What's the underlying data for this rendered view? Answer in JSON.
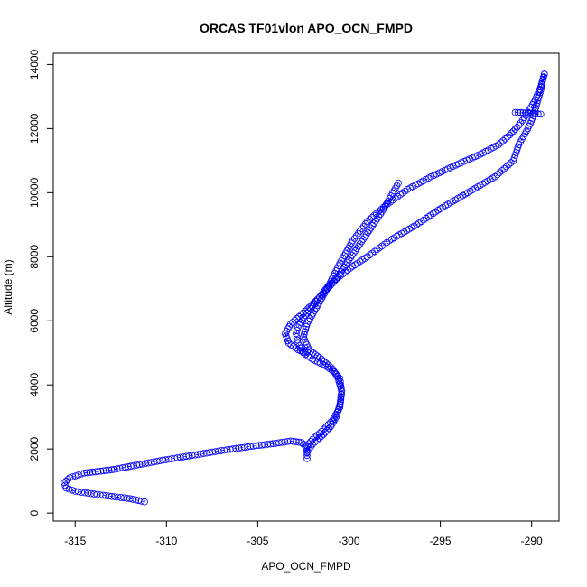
{
  "chart_data": {
    "type": "scatter",
    "title": "ORCAS TF01vlon APO_OCN_FMPD",
    "xlabel": "APO_OCN_FMPD",
    "ylabel": "Altitude (m)",
    "xlim": [
      -316.2,
      -288.5
    ],
    "ylim": [
      -250,
      14350
    ],
    "xticks": [
      -315,
      -310,
      -305,
      -300,
      -295,
      -290
    ],
    "yticks": [
      0,
      2000,
      4000,
      6000,
      8000,
      10000,
      12000,
      14000
    ],
    "grid": false,
    "legend": "none",
    "marker": "open-circle",
    "color": "#0000ff",
    "series": [
      {
        "x": [
          -311.2,
          -312.0,
          -313.0,
          -313.8,
          -314.3,
          -315.0,
          -315.5,
          -315.6,
          -315.3,
          -314.5,
          -313.0,
          -311.8,
          -310.2,
          -308.6,
          -307.0,
          -305.4,
          -304.0,
          -303.2,
          -302.6,
          -302.4,
          -302.3,
          -302.3,
          -302.3
        ],
        "y": [
          350,
          450,
          520,
          580,
          620,
          680,
          780,
          950,
          1100,
          1250,
          1350,
          1480,
          1650,
          1800,
          1950,
          2080,
          2180,
          2250,
          2200,
          2100,
          1950,
          1800,
          1700
        ],
        "line": "dashed"
      },
      {
        "x": [
          -302.3,
          -302.0,
          -301.5,
          -300.9,
          -300.5,
          -300.4,
          -300.5,
          -300.8,
          -301.3,
          -302.0,
          -302.5,
          -302.8,
          -302.9,
          -302.8,
          -302.5,
          -302.0,
          -301.6,
          -301.2,
          -300.6,
          -299.8,
          -299.0,
          -297.8,
          -296.3,
          -295.0,
          -293.5,
          -292.0,
          -291.0,
          -290.7,
          -290.2,
          -289.9,
          -289.7,
          -289.5,
          -289.4,
          -289.3
        ],
        "y": [
          2100,
          2300,
          2550,
          2900,
          3300,
          3800,
          4200,
          4400,
          4600,
          4800,
          5000,
          5300,
          5600,
          5800,
          6100,
          6450,
          6750,
          7050,
          7350,
          7700,
          8000,
          8500,
          9000,
          9500,
          10000,
          10500,
          11000,
          11500,
          12000,
          12400,
          12800,
          13200,
          13500,
          13700
        ],
        "line": "dashed"
      },
      {
        "x": [
          -289.3,
          -289.5,
          -289.8,
          -290.2,
          -290.7,
          -291.2,
          -291.8,
          -292.8,
          -294.0,
          -295.5,
          -296.8,
          -298.0,
          -299.0,
          -299.8,
          -300.5,
          -301.2,
          -301.8,
          -302.3,
          -302.5,
          -302.2,
          -301.5,
          -300.9,
          -300.6,
          -300.4,
          -300.5,
          -300.7,
          -301.0,
          -301.5,
          -302.0,
          -302.3
        ],
        "y": [
          13700,
          13300,
          12900,
          12500,
          12100,
          11800,
          11500,
          11200,
          10900,
          10500,
          10100,
          9600,
          9100,
          8500,
          7800,
          7000,
          6400,
          5900,
          5500,
          5100,
          4800,
          4500,
          4200,
          3800,
          3400,
          3000,
          2700,
          2400,
          2150,
          1900
        ],
        "line": "dashed"
      },
      {
        "x": [
          -297.3,
          -297.7,
          -298.2,
          -298.8,
          -299.4,
          -300.0,
          -300.7,
          -301.5,
          -302.4,
          -303.2,
          -303.5,
          -303.3,
          -302.8,
          -302.4,
          -302.3
        ],
        "y": [
          10300,
          9900,
          9400,
          8900,
          8400,
          7900,
          7300,
          6800,
          6300,
          5900,
          5600,
          5300,
          5100,
          5000,
          5050
        ],
        "line": "dashed"
      },
      {
        "x": [
          -290.9,
          -290.6,
          -290.2,
          -289.8,
          -289.5
        ],
        "y": [
          12500,
          12500,
          12480,
          12460,
          12450
        ],
        "line": "dashed"
      }
    ]
  }
}
